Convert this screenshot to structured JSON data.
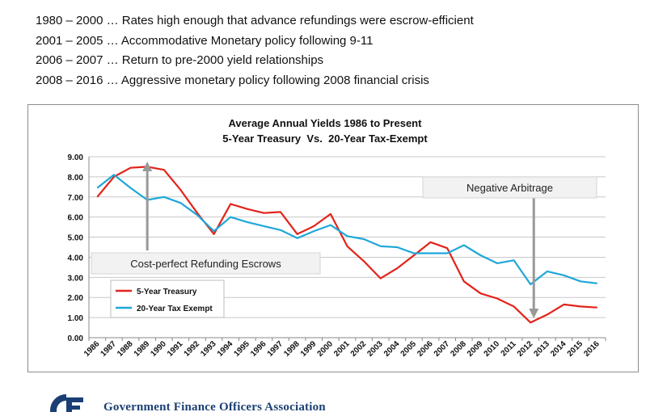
{
  "bullets": [
    "1980 – 2000 … Rates high enough that advance refundings were escrow-efficient",
    "2001 – 2005 … Accommodative Monetary policy following 9-11",
    "2006 – 2007 … Return to pre-2000 yield relationships",
    "2008 – 2016 … Aggressive monetary policy following 2008 financial crisis"
  ],
  "footer": {
    "org_name": "Government Finance Officers Association"
  },
  "chart_data": {
    "type": "line",
    "title": "Average Annual Yields 1986 to Present",
    "subtitle": "5-Year Treasury  Vs.  20-Year Tax-Exempt",
    "xlabel": "",
    "ylabel": "",
    "ylim": [
      0,
      9
    ],
    "yticks": [
      "0.00",
      "1.00",
      "2.00",
      "3.00",
      "4.00",
      "5.00",
      "6.00",
      "7.00",
      "8.00",
      "9.00"
    ],
    "grid": true,
    "legend_position": "bottom-left",
    "x": [
      "1986",
      "1987",
      "1988",
      "1989",
      "1990",
      "1991",
      "1992",
      "1993",
      "1994",
      "1995",
      "1996",
      "1997",
      "1998",
      "1999",
      "2000",
      "2001",
      "2002",
      "2003",
      "2004",
      "2005",
      "2006",
      "2007",
      "2008",
      "2009",
      "2010",
      "2011",
      "2012",
      "2013",
      "2014",
      "2015",
      "2016"
    ],
    "series": [
      {
        "name": "5-Year Treasury",
        "color": "#e2231a",
        "values": [
          7.0,
          8.0,
          8.45,
          8.5,
          8.35,
          7.35,
          6.2,
          5.15,
          6.65,
          6.4,
          6.2,
          6.25,
          5.15,
          5.55,
          6.15,
          4.55,
          3.8,
          2.95,
          3.45,
          4.1,
          4.75,
          4.45,
          2.8,
          2.2,
          1.95,
          1.55,
          0.75,
          1.15,
          1.65,
          1.55,
          1.5
        ]
      },
      {
        "name": "20-Year Tax Exempt",
        "color": "#1fa7d9",
        "values": [
          7.45,
          8.1,
          7.45,
          6.85,
          7.0,
          6.7,
          6.1,
          5.3,
          6.0,
          5.75,
          5.55,
          5.35,
          4.95,
          5.3,
          5.6,
          5.05,
          4.9,
          4.55,
          4.5,
          4.2,
          4.2,
          4.2,
          4.6,
          4.1,
          3.7,
          3.85,
          2.65,
          3.3,
          3.1,
          2.8,
          2.7
        ]
      }
    ],
    "annotations": [
      {
        "text": "Cost-perfect Refunding Escrows",
        "arrow_year": "1989"
      },
      {
        "text": "Negative Arbitrage",
        "arrow_year": "2012"
      }
    ]
  }
}
